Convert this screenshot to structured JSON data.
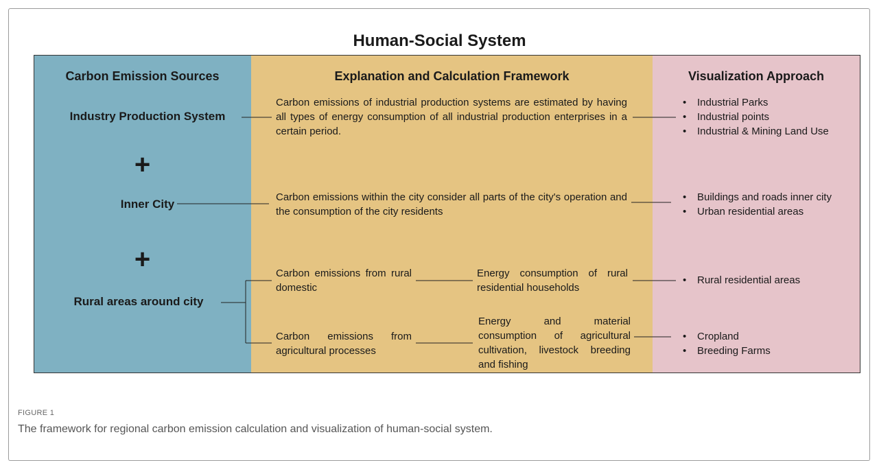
{
  "figure": {
    "title": "Human-Social System",
    "headers": [
      "Carbon Emission Sources",
      "Explanation and Calculation Framework",
      "Visualization Approach"
    ],
    "sources": [
      "Industry Production System",
      "Inner City",
      "Rural areas around city"
    ],
    "operators": [
      "+",
      "+"
    ],
    "explanations": {
      "industry": "Carbon emissions of industrial production systems are estimated by having all types of energy consumption of all industrial production enterprises in a certain period.",
      "inner_city": "Carbon emissions within the city consider all parts of the city's operation and the consumption of the city residents",
      "rural_domestic": "Carbon emissions from rural domestic",
      "rural_domestic_detail": "Energy consumption of rural residential households",
      "agricultural": "Carbon emissions from agricultural processes",
      "agricultural_detail": "Energy and material consumption of agricultural cultivation, livestock breeding and fishing"
    },
    "visualization": {
      "industry": [
        "Industrial Parks",
        "Industrial points",
        "Industrial & Mining Land Use"
      ],
      "inner_city": [
        "Buildings and roads inner city",
        "Urban residential areas"
      ],
      "rural_domestic": [
        "Rural residential areas"
      ],
      "agricultural": [
        "Cropland",
        "Breeding Farms"
      ]
    }
  },
  "caption": {
    "label": "FIGURE 1",
    "text": "The framework for regional carbon emission calculation and visualization of human-social system."
  }
}
